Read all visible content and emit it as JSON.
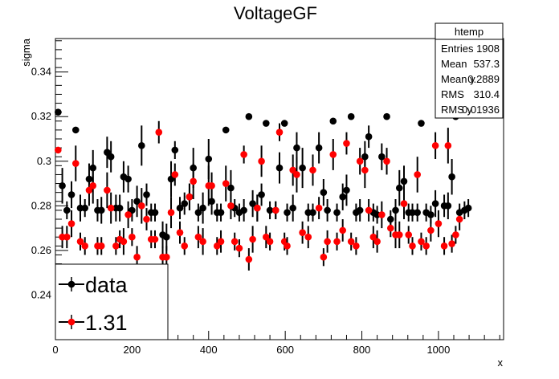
{
  "chart_data": {
    "type": "scatter",
    "title": "VoltageGF",
    "xlabel": "x",
    "ylabel": "sigma",
    "xlim": [
      0,
      1170
    ],
    "ylim": [
      0.22,
      0.355
    ],
    "x_ticks": [
      0,
      200,
      400,
      600,
      800,
      1000
    ],
    "y_ticks": [
      0.24,
      0.26,
      0.28,
      0.3,
      0.32,
      0.34
    ],
    "grid": false,
    "legend_position": "bottom-left",
    "stats": {
      "name": "htemp",
      "rows": [
        {
          "label": "Entries",
          "value": "1908"
        },
        {
          "label": "Mean",
          "value": "537.3"
        },
        {
          "label": "Mean y",
          "value": "0.2889"
        },
        {
          "label": "RMS",
          "value": "310.4"
        },
        {
          "label": "RMS y",
          "value": "0.01936"
        }
      ]
    },
    "series": [
      {
        "name": "data",
        "color": "#000000",
        "points": [
          [
            7,
            0.322,
            0
          ],
          [
            18,
            0.289,
            0.008
          ],
          [
            30,
            0.278,
            0.004
          ],
          [
            42,
            0.285,
            0.006
          ],
          [
            53,
            0.314,
            0
          ],
          [
            65,
            0.279,
            0.006
          ],
          [
            77,
            0.279,
            0.004
          ],
          [
            88,
            0.292,
            0.007
          ],
          [
            98,
            0.297,
            0.008
          ],
          [
            110,
            0.278,
            0.005
          ],
          [
            120,
            0.278,
            0.006
          ],
          [
            135,
            0.304,
            0.007
          ],
          [
            145,
            0.302,
            0.007
          ],
          [
            158,
            0.279,
            0.006
          ],
          [
            168,
            0.279,
            0.006
          ],
          [
            178,
            0.293,
            0.007
          ],
          [
            190,
            0.292,
            0.006
          ],
          [
            200,
            0.278,
            0.005
          ],
          [
            213,
            0.282,
            0.007
          ],
          [
            225,
            0.307,
            0.009
          ],
          [
            238,
            0.285,
            0.005
          ],
          [
            250,
            0.277,
            0.004
          ],
          [
            260,
            0.277,
            0.004
          ],
          [
            280,
            0.267,
            0.006
          ],
          [
            290,
            0.266,
            0.006
          ],
          [
            302,
            0.292,
            0.008
          ],
          [
            312,
            0.305,
            0.004
          ],
          [
            325,
            0.279,
            0.005
          ],
          [
            337,
            0.281,
            0.005
          ],
          [
            350,
            0.284,
            0.006
          ],
          [
            360,
            0.297,
            0.009
          ],
          [
            373,
            0.277,
            0.004
          ],
          [
            385,
            0.279,
            0.007
          ],
          [
            400,
            0.301,
            0.009
          ],
          [
            408,
            0.282,
            0.006
          ],
          [
            422,
            0.277,
            0.004
          ],
          [
            432,
            0.277,
            0.004
          ],
          [
            445,
            0.314,
            0
          ],
          [
            458,
            0.288,
            0.008
          ],
          [
            468,
            0.279,
            0.004
          ],
          [
            480,
            0.277,
            0.004
          ],
          [
            492,
            0.278,
            0.005
          ],
          [
            505,
            0.32,
            0
          ],
          [
            515,
            0.281,
            0.006
          ],
          [
            527,
            0.279,
            0.006
          ],
          [
            538,
            0.285,
            0.005
          ],
          [
            550,
            0.317,
            0
          ],
          [
            560,
            0.278,
            0.004
          ],
          [
            575,
            0.278,
            0.004
          ],
          [
            585,
            0.297,
            0.007
          ],
          [
            598,
            0.317,
            0
          ],
          [
            605,
            0.277,
            0.004
          ],
          [
            620,
            0.279,
            0.006
          ],
          [
            630,
            0.306,
            0.007
          ],
          [
            645,
            0.297,
            0.009
          ],
          [
            660,
            0.277,
            0.004
          ],
          [
            672,
            0.277,
            0.004
          ],
          [
            688,
            0.306,
            0.007
          ],
          [
            700,
            0.286,
            0.006
          ],
          [
            710,
            0.278,
            0.005
          ],
          [
            725,
            0.318,
            0
          ],
          [
            735,
            0.277,
            0.004
          ],
          [
            750,
            0.284,
            0.006
          ],
          [
            760,
            0.287,
            0.007
          ],
          [
            772,
            0.32,
            0
          ],
          [
            785,
            0.277,
            0.004
          ],
          [
            795,
            0.278,
            0.005
          ],
          [
            808,
            0.302,
            0.007
          ],
          [
            818,
            0.311,
            0.005
          ],
          [
            830,
            0.277,
            0.004
          ],
          [
            840,
            0.276,
            0.004
          ],
          [
            852,
            0.302,
            0.006
          ],
          [
            865,
            0.32,
            0
          ],
          [
            875,
            0.274,
            0.004
          ],
          [
            888,
            0.278,
            0.005
          ],
          [
            898,
            0.288,
            0.008
          ],
          [
            910,
            0.291,
            0.007
          ],
          [
            922,
            0.277,
            0.004
          ],
          [
            932,
            0.277,
            0.004
          ],
          [
            945,
            0.277,
            0.004
          ],
          [
            955,
            0.317,
            0
          ],
          [
            968,
            0.277,
            0.004
          ],
          [
            980,
            0.276,
            0.004
          ],
          [
            992,
            0.281,
            0.006
          ],
          [
            1000,
            0.321,
            0
          ],
          [
            1015,
            0.28,
            0.005
          ],
          [
            1025,
            0.28,
            0.006
          ],
          [
            1035,
            0.293,
            0.008
          ],
          [
            1045,
            0.32,
            0
          ],
          [
            1055,
            0.277,
            0.004
          ],
          [
            1068,
            0.278,
            0.004
          ],
          [
            1078,
            0.279,
            0.004
          ]
        ]
      },
      {
        "name": "1.31",
        "color": "#ff0000",
        "points": [
          [
            7,
            0.305,
            0
          ],
          [
            18,
            0.266,
            0.005
          ],
          [
            30,
            0.266,
            0.005
          ],
          [
            42,
            0.272,
            0.006
          ],
          [
            53,
            0.299,
            0.008
          ],
          [
            65,
            0.264,
            0.004
          ],
          [
            77,
            0.262,
            0.004
          ],
          [
            88,
            0.287,
            0.007
          ],
          [
            98,
            0.289,
            0.008
          ],
          [
            110,
            0.262,
            0.004
          ],
          [
            120,
            0.262,
            0.004
          ],
          [
            135,
            0.287,
            0.008
          ],
          [
            145,
            0.279,
            0.007
          ],
          [
            158,
            0.262,
            0.004
          ],
          [
            168,
            0.265,
            0.004
          ],
          [
            178,
            0.264,
            0.006
          ],
          [
            190,
            0.276,
            0.006
          ],
          [
            200,
            0.266,
            0.004
          ],
          [
            213,
            0.257,
            0.005
          ],
          [
            225,
            0.28,
            0.008
          ],
          [
            238,
            0.274,
            0.005
          ],
          [
            250,
            0.265,
            0.004
          ],
          [
            260,
            0.265,
            0.004
          ],
          [
            270,
            0.313,
            0.005
          ],
          [
            280,
            0.257,
            0.005
          ],
          [
            290,
            0.257,
            0.005
          ],
          [
            302,
            0.277,
            0.007
          ],
          [
            312,
            0.294,
            0.005
          ],
          [
            325,
            0.268,
            0.005
          ],
          [
            337,
            0.262,
            0.004
          ],
          [
            350,
            0.284,
            0.006
          ],
          [
            360,
            0.291,
            0.008
          ],
          [
            373,
            0.266,
            0.005
          ],
          [
            385,
            0.264,
            0.006
          ],
          [
            400,
            0.289,
            0.009
          ],
          [
            408,
            0.289,
            0.006
          ],
          [
            422,
            0.262,
            0.004
          ],
          [
            432,
            0.264,
            0.005
          ],
          [
            445,
            0.29,
            0.008
          ],
          [
            458,
            0.28,
            0.006
          ],
          [
            468,
            0.264,
            0.004
          ],
          [
            480,
            0.261,
            0.004
          ],
          [
            492,
            0.303,
            0.004
          ],
          [
            505,
            0.256,
            0.005
          ],
          [
            515,
            0.265,
            0.006
          ],
          [
            527,
            0.279,
            0.006
          ],
          [
            538,
            0.3,
            0.007
          ],
          [
            550,
            0.266,
            0.005
          ],
          [
            560,
            0.264,
            0.004
          ],
          [
            575,
            0.278,
            0.004
          ],
          [
            585,
            0.313,
            0.004
          ],
          [
            598,
            0.264,
            0.004
          ],
          [
            605,
            0.262,
            0.004
          ],
          [
            620,
            0.296,
            0.007
          ],
          [
            630,
            0.294,
            0.008
          ],
          [
            645,
            0.268,
            0.005
          ],
          [
            660,
            0.266,
            0.005
          ],
          [
            672,
            0.296,
            0.007
          ],
          [
            688,
            0.279,
            0.005
          ],
          [
            700,
            0.257,
            0.004
          ],
          [
            710,
            0.264,
            0.005
          ],
          [
            725,
            0.303,
            0.007
          ],
          [
            735,
            0.264,
            0.004
          ],
          [
            750,
            0.269,
            0.005
          ],
          [
            760,
            0.308,
            0.005
          ],
          [
            772,
            0.264,
            0.004
          ],
          [
            785,
            0.262,
            0.004
          ],
          [
            795,
            0.3,
            0.006
          ],
          [
            808,
            0.296,
            0.008
          ],
          [
            818,
            0.278,
            0.005
          ],
          [
            830,
            0.266,
            0.005
          ],
          [
            840,
            0.264,
            0.005
          ],
          [
            852,
            0.276,
            0.006
          ],
          [
            865,
            0.3,
            0.006
          ],
          [
            875,
            0.27,
            0.004
          ],
          [
            888,
            0.267,
            0.006
          ],
          [
            898,
            0.267,
            0.006
          ],
          [
            910,
            0.281,
            0.007
          ],
          [
            922,
            0.267,
            0.004
          ],
          [
            932,
            0.262,
            0.004
          ],
          [
            945,
            0.294,
            0.008
          ],
          [
            955,
            0.264,
            0.004
          ],
          [
            968,
            0.262,
            0.004
          ],
          [
            980,
            0.269,
            0.005
          ],
          [
            992,
            0.307,
            0.006
          ],
          [
            1000,
            0.272,
            0.006
          ],
          [
            1015,
            0.262,
            0.004
          ],
          [
            1025,
            0.307,
            0.008
          ],
          [
            1035,
            0.263,
            0.004
          ],
          [
            1045,
            0.267,
            0.004
          ],
          [
            1055,
            0.274,
            0.005
          ]
        ]
      }
    ]
  }
}
